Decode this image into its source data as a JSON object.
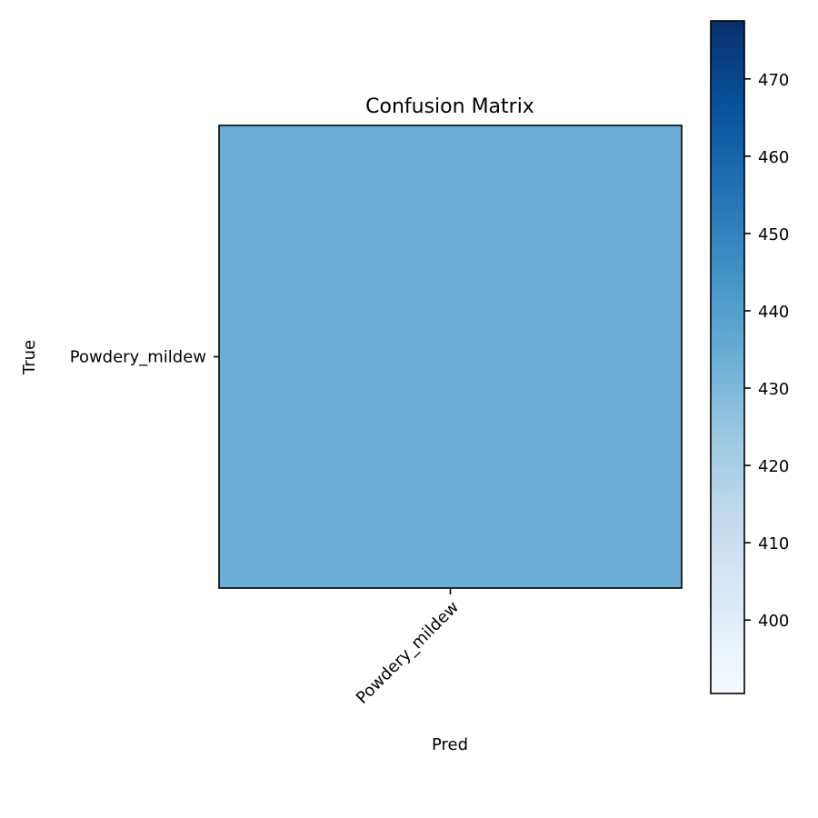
{
  "chart_data": {
    "type": "heatmap",
    "title": "Confusion Matrix",
    "xlabel": "Pred",
    "ylabel": "True",
    "x_categories": [
      "Powdery_mildew"
    ],
    "y_categories": [
      "Powdery_mildew"
    ],
    "values": [
      [
        434
      ]
    ],
    "colormap": "Blues",
    "colorbar": {
      "range": [
        390.5,
        477.5
      ],
      "ticks": [
        400,
        410,
        420,
        430,
        440,
        450,
        460,
        470
      ]
    },
    "colors": {
      "cell": "#6badd6",
      "cmap_stops": [
        "#f7fbff",
        "#deebf7",
        "#c6dbef",
        "#9ecae1",
        "#6baed6",
        "#4292c6",
        "#2171b5",
        "#08519c",
        "#08306b"
      ]
    }
  }
}
